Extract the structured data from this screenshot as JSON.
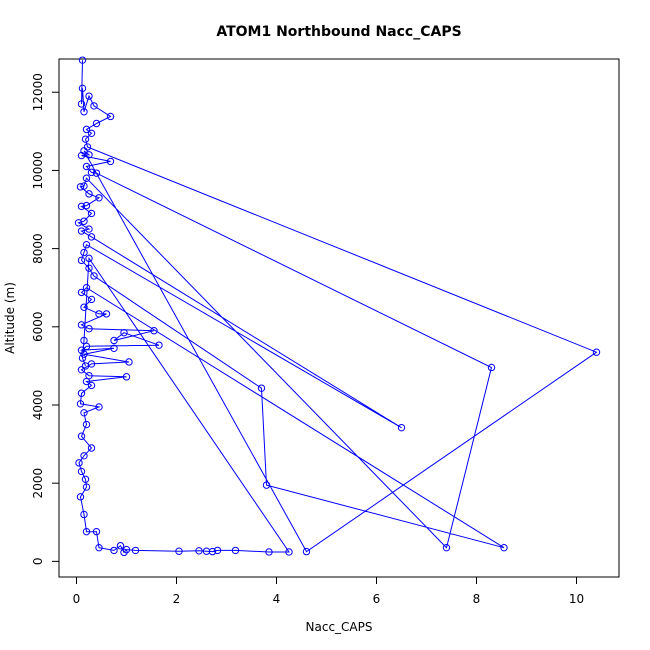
{
  "chart_data": {
    "type": "line",
    "title": "ATOM1 Northbound Nacc_CAPS",
    "xlabel": "Nacc_CAPS",
    "ylabel": "Altitude (m)",
    "xlim": [
      -0.35,
      10.85
    ],
    "ylim": [
      -400,
      12850
    ],
    "xticks": [
      0,
      2,
      4,
      6,
      8,
      10
    ],
    "yticks": [
      0,
      2000,
      4000,
      6000,
      8000,
      10000,
      12000
    ],
    "marker": "open-circle",
    "series": [
      {
        "color": "#0000ff",
        "points": [
          [
            0.12,
            12820
          ],
          [
            0.1,
            11700
          ],
          [
            0.12,
            12100
          ],
          [
            0.15,
            11500
          ],
          [
            0.25,
            11900
          ],
          [
            0.35,
            11650
          ],
          [
            0.68,
            11380
          ],
          [
            0.4,
            11200
          ],
          [
            0.2,
            11050
          ],
          [
            0.3,
            10950
          ],
          [
            0.18,
            10800
          ],
          [
            0.22,
            10600
          ],
          [
            10.4,
            5350
          ],
          [
            0.15,
            10500
          ],
          [
            0.25,
            10400
          ],
          [
            0.1,
            10380
          ],
          [
            0.68,
            10230
          ],
          [
            0.2,
            10100
          ],
          [
            0.3,
            9950
          ],
          [
            0.4,
            9930
          ],
          [
            8.3,
            4960
          ],
          [
            0.2,
            9800
          ],
          [
            0.15,
            9600
          ],
          [
            0.08,
            9580
          ],
          [
            0.25,
            9400
          ],
          [
            0.45,
            9300
          ],
          [
            0.2,
            9100
          ],
          [
            0.1,
            9080
          ],
          [
            0.3,
            8900
          ],
          [
            0.15,
            8700
          ],
          [
            0.04,
            8660
          ],
          [
            0.25,
            8500
          ],
          [
            0.1,
            8450
          ],
          [
            0.3,
            8300
          ],
          [
            6.5,
            3420
          ],
          [
            0.2,
            8100
          ],
          [
            0.15,
            7900
          ],
          [
            0.1,
            7700
          ],
          [
            0.25,
            7500
          ],
          [
            0.35,
            7300
          ],
          [
            3.7,
            4430
          ],
          [
            3.8,
            1950
          ],
          [
            8.55,
            350
          ],
          [
            0.2,
            7000
          ],
          [
            0.1,
            6880
          ],
          [
            0.3,
            6700
          ],
          [
            0.15,
            6500
          ],
          [
            0.45,
            6330
          ],
          [
            0.6,
            6330
          ],
          [
            0.1,
            6050
          ],
          [
            0.25,
            5950
          ],
          [
            1.55,
            5900
          ],
          [
            0.75,
            5650
          ],
          [
            0.95,
            5850
          ],
          [
            1.65,
            5530
          ],
          [
            0.2,
            5500
          ],
          [
            0.1,
            5400
          ],
          [
            0.75,
            5450
          ],
          [
            0.15,
            5300
          ],
          [
            1.05,
            5100
          ],
          [
            0.3,
            5050
          ],
          [
            0.1,
            4900
          ],
          [
            0.25,
            4750
          ],
          [
            1.0,
            4720
          ],
          [
            0.2,
            4600
          ],
          [
            0.3,
            4500
          ],
          [
            0.1,
            4300
          ],
          [
            0.08,
            4030
          ],
          [
            0.45,
            3950
          ],
          [
            0.15,
            3800
          ],
          [
            0.2,
            3500
          ],
          [
            0.1,
            3200
          ],
          [
            0.3,
            2900
          ],
          [
            0.15,
            2700
          ],
          [
            0.05,
            2520
          ],
          [
            0.1,
            2300
          ],
          [
            0.18,
            2100
          ],
          [
            0.2,
            1900
          ],
          [
            0.08,
            1650
          ],
          [
            0.15,
            1200
          ],
          [
            0.2,
            760
          ],
          [
            0.4,
            760
          ],
          [
            0.45,
            350
          ],
          [
            0.75,
            280
          ],
          [
            0.88,
            400
          ],
          [
            0.95,
            230
          ],
          [
            1.0,
            300
          ],
          [
            1.18,
            280
          ],
          [
            2.05,
            260
          ],
          [
            2.45,
            270
          ],
          [
            2.6,
            260
          ],
          [
            2.72,
            250
          ],
          [
            2.82,
            280
          ],
          [
            3.18,
            280
          ],
          [
            3.85,
            240
          ],
          [
            4.25,
            240
          ],
          [
            4.6,
            250
          ],
          [
            7.4,
            350
          ],
          [
            0.25,
            7750
          ],
          [
            0.15,
            5650
          ],
          [
            0.12,
            5200
          ],
          [
            0.18,
            5000
          ]
        ],
        "order": [
          0,
          1,
          2,
          3,
          4,
          5,
          6,
          7,
          8,
          9,
          10,
          11,
          12,
          96,
          13,
          14,
          15,
          16,
          17,
          18,
          19,
          20,
          97,
          21,
          22,
          23,
          24,
          25,
          26,
          27,
          28,
          29,
          30,
          31,
          32,
          33,
          34,
          35,
          36,
          37,
          38,
          39,
          40,
          41,
          42,
          43,
          44,
          45,
          46,
          47,
          48,
          49,
          50,
          51,
          52,
          53,
          54,
          55,
          56,
          57,
          58,
          59,
          60,
          61,
          62,
          63,
          64,
          65,
          66,
          67,
          68,
          69,
          70,
          71,
          72,
          73,
          74,
          75,
          76,
          77,
          78,
          79,
          80,
          81,
          82,
          83,
          84,
          85,
          86,
          87,
          88,
          89,
          90,
          91,
          92,
          93,
          94,
          95,
          98,
          99,
          100,
          101
        ]
      }
    ]
  }
}
